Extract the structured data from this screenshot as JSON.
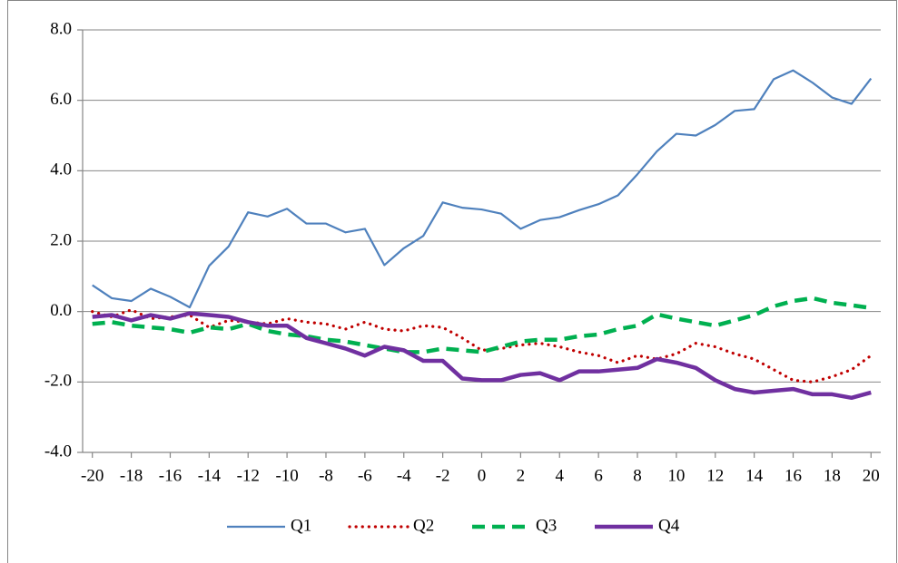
{
  "chart_data": {
    "type": "line",
    "x": [
      -20,
      -19,
      -18,
      -17,
      -16,
      -15,
      -14,
      -13,
      -12,
      -11,
      -10,
      -9,
      -8,
      -7,
      -6,
      -5,
      -4,
      -3,
      -2,
      -1,
      0,
      1,
      2,
      3,
      4,
      5,
      6,
      7,
      8,
      9,
      10,
      11,
      12,
      13,
      14,
      15,
      16,
      17,
      18,
      19,
      20
    ],
    "xlim": [
      -20.5,
      20.5
    ],
    "xticks": [
      -20,
      -18,
      -16,
      -14,
      -12,
      -10,
      -8,
      -6,
      -4,
      -2,
      0,
      2,
      4,
      6,
      8,
      10,
      12,
      14,
      16,
      18,
      20
    ],
    "ylim": [
      -4,
      8
    ],
    "yticks": [
      {
        "value": -4,
        "label": "-4.0"
      },
      {
        "value": -2,
        "label": "-2.0"
      },
      {
        "value": 0,
        "label": "0.0"
      },
      {
        "value": 2,
        "label": "2.0"
      },
      {
        "value": 4,
        "label": "4.0"
      },
      {
        "value": 6,
        "label": "6.0"
      },
      {
        "value": 8,
        "label": "8.0"
      }
    ],
    "grid": true,
    "legend": "bottom",
    "series": [
      {
        "name": "Q1",
        "color": "#4f81bd",
        "style": "solid",
        "values": [
          0.75,
          0.38,
          0.3,
          0.65,
          0.42,
          0.12,
          1.3,
          1.85,
          2.82,
          2.7,
          2.92,
          2.5,
          2.5,
          2.25,
          2.35,
          1.32,
          1.8,
          2.15,
          3.1,
          2.95,
          2.9,
          2.78,
          2.35,
          2.6,
          2.68,
          2.88,
          3.05,
          3.3,
          3.9,
          4.55,
          5.05,
          5.0,
          5.3,
          5.7,
          5.75,
          6.6,
          6.85,
          6.5,
          6.08,
          5.9,
          6.62
        ]
      },
      {
        "name": "Q2",
        "color": "#c00000",
        "style": "dotted",
        "values": [
          0.0,
          -0.15,
          0.05,
          -0.2,
          -0.15,
          -0.1,
          -0.45,
          -0.25,
          -0.3,
          -0.35,
          -0.2,
          -0.3,
          -0.35,
          -0.5,
          -0.3,
          -0.5,
          -0.55,
          -0.4,
          -0.45,
          -0.75,
          -1.1,
          -1.05,
          -0.95,
          -0.9,
          -1.0,
          -1.15,
          -1.25,
          -1.45,
          -1.25,
          -1.35,
          -1.2,
          -0.9,
          -1.0,
          -1.2,
          -1.35,
          -1.65,
          -1.95,
          -2.0,
          -1.85,
          -1.65,
          -1.25
        ]
      },
      {
        "name": "Q3",
        "color": "#00b050",
        "style": "dashed",
        "values": [
          -0.35,
          -0.3,
          -0.4,
          -0.45,
          -0.5,
          -0.6,
          -0.45,
          -0.5,
          -0.35,
          -0.55,
          -0.65,
          -0.7,
          -0.8,
          -0.85,
          -0.95,
          -1.05,
          -1.15,
          -1.15,
          -1.05,
          -1.1,
          -1.15,
          -1.0,
          -0.85,
          -0.8,
          -0.8,
          -0.7,
          -0.65,
          -0.5,
          -0.4,
          -0.08,
          -0.2,
          -0.3,
          -0.4,
          -0.25,
          -0.1,
          0.15,
          0.3,
          0.38,
          0.25,
          0.18,
          0.1
        ]
      },
      {
        "name": "Q4",
        "color": "#7030a0",
        "style": "solid-heavy",
        "values": [
          -0.15,
          -0.1,
          -0.25,
          -0.1,
          -0.2,
          -0.05,
          -0.1,
          -0.15,
          -0.3,
          -0.4,
          -0.4,
          -0.75,
          -0.9,
          -1.05,
          -1.25,
          -1.0,
          -1.1,
          -1.4,
          -1.4,
          -1.9,
          -1.95,
          -1.95,
          -1.8,
          -1.75,
          -1.95,
          -1.7,
          -1.7,
          -1.65,
          -1.6,
          -1.35,
          -1.45,
          -1.6,
          -1.95,
          -2.2,
          -2.3,
          -2.25,
          -2.2,
          -2.35,
          -2.35,
          -2.45,
          -2.3
        ]
      }
    ]
  }
}
